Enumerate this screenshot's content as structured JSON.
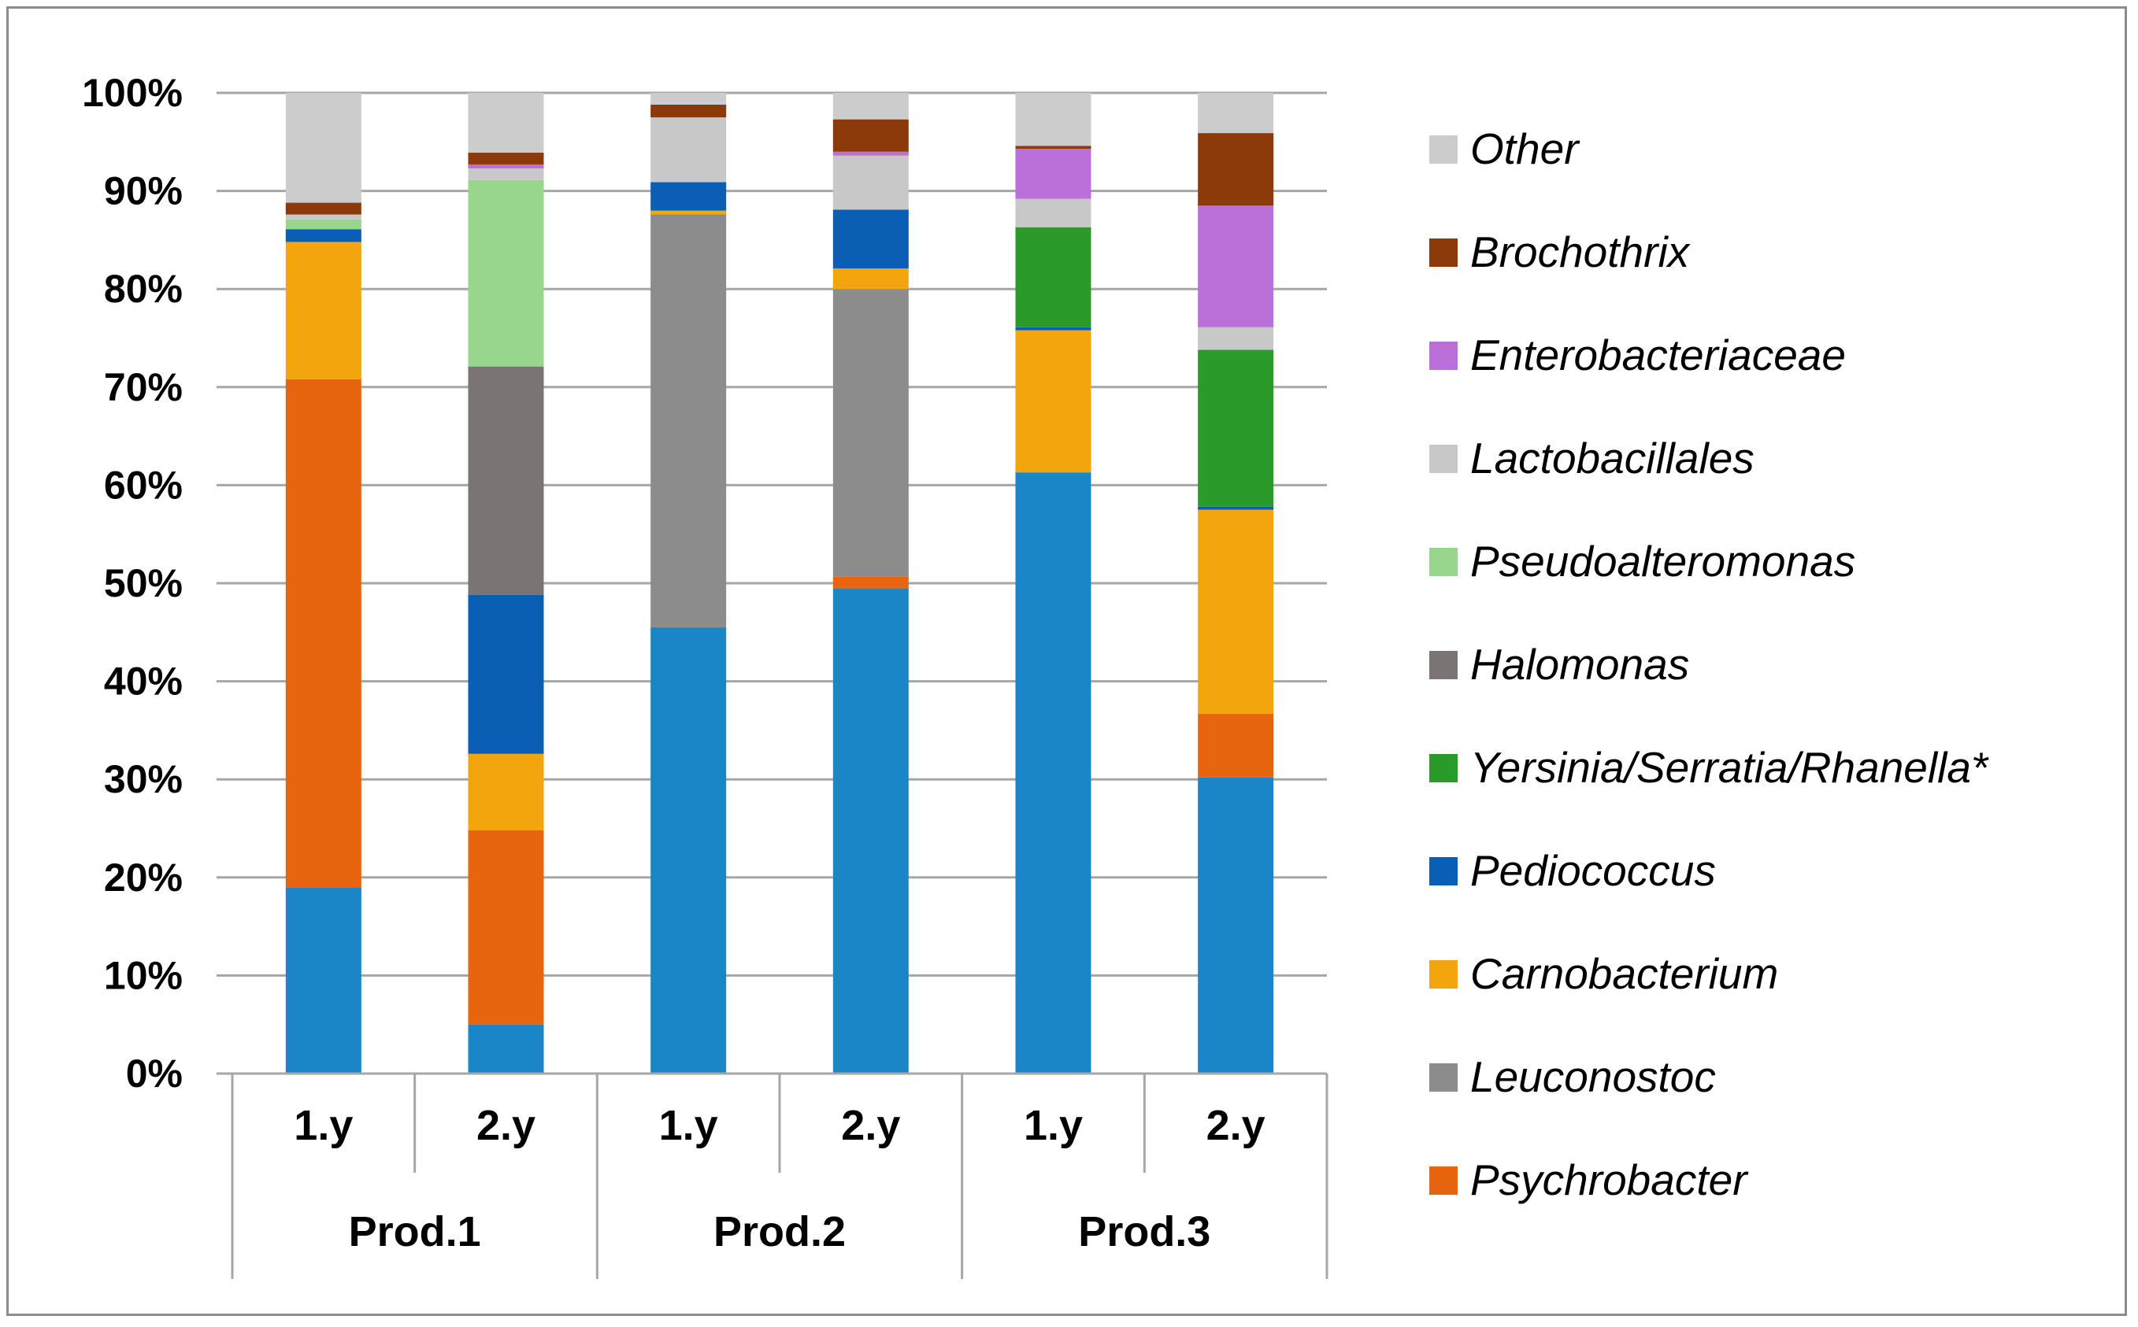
{
  "chart_data": {
    "type": "bar",
    "stacked": true,
    "percent_stacked": true,
    "y_tick_labels": [
      "0%",
      "10%",
      "20%",
      "30%",
      "40%",
      "50%",
      "60%",
      "70%",
      "80%",
      "90%",
      "100%"
    ],
    "ylim": [
      0,
      100
    ],
    "grid": true,
    "legend_position": "right",
    "categories": [
      "1.y",
      "2.y",
      "1.y",
      "2.y",
      "1.y",
      "2.y"
    ],
    "groups": [
      {
        "label": "Prod.1",
        "span": [
          0,
          1
        ]
      },
      {
        "label": "Prod.2",
        "span": [
          2,
          3
        ]
      },
      {
        "label": "Prod.3",
        "span": [
          4,
          5
        ]
      }
    ],
    "series": [
      {
        "name": "",
        "color": "#1a86c7",
        "values": [
          19,
          5,
          45.5,
          49.5,
          61.3,
          30.2
        ]
      },
      {
        "name": "Psychrobacter",
        "color": "#e8650f",
        "values": [
          51.8,
          19.8,
          0,
          1.2,
          0,
          6.5
        ]
      },
      {
        "name": "Leuconostoc",
        "color": "#8c8c8c",
        "values": [
          0,
          0,
          42.1,
          29.3,
          0,
          0
        ]
      },
      {
        "name": "Carnobacterium",
        "color": "#f2a50c",
        "values": [
          14,
          7.8,
          0.4,
          2.1,
          14.5,
          20.8
        ]
      },
      {
        "name": "Pediococcus",
        "color": "#0a5fb4",
        "values": [
          1.3,
          16.2,
          2.9,
          6,
          0.3,
          0.3
        ]
      },
      {
        "name": "Yersinia/Serratia/Rhanella*",
        "color": "#2a9a2a",
        "values": [
          0,
          0,
          0,
          0,
          10.2,
          16
        ]
      },
      {
        "name": "Halomonas",
        "color": "#7a7474",
        "values": [
          0,
          23.3,
          0,
          0,
          0,
          0
        ]
      },
      {
        "name": "Pseudoalteromonas",
        "color": "#97d68c",
        "values": [
          1,
          19,
          0,
          0,
          0,
          0
        ]
      },
      {
        "name": "Lactobacillales",
        "color": "#c8c8c8",
        "values": [
          0.5,
          1.2,
          6.6,
          5.5,
          2.9,
          2.3
        ]
      },
      {
        "name": "Enterobacteriaceae",
        "color": "#bb6fd8",
        "values": [
          0,
          0.4,
          0,
          0.4,
          5.1,
          12.4
        ]
      },
      {
        "name": "Brochothrix",
        "color": "#8c3a0a",
        "values": [
          1.2,
          1.2,
          1.3,
          3.3,
          0.3,
          7.4
        ]
      },
      {
        "name": "Other",
        "color": "#cccccc",
        "values": [
          11.2,
          6.1,
          1.2,
          2.7,
          5.4,
          4.1
        ]
      }
    ]
  }
}
